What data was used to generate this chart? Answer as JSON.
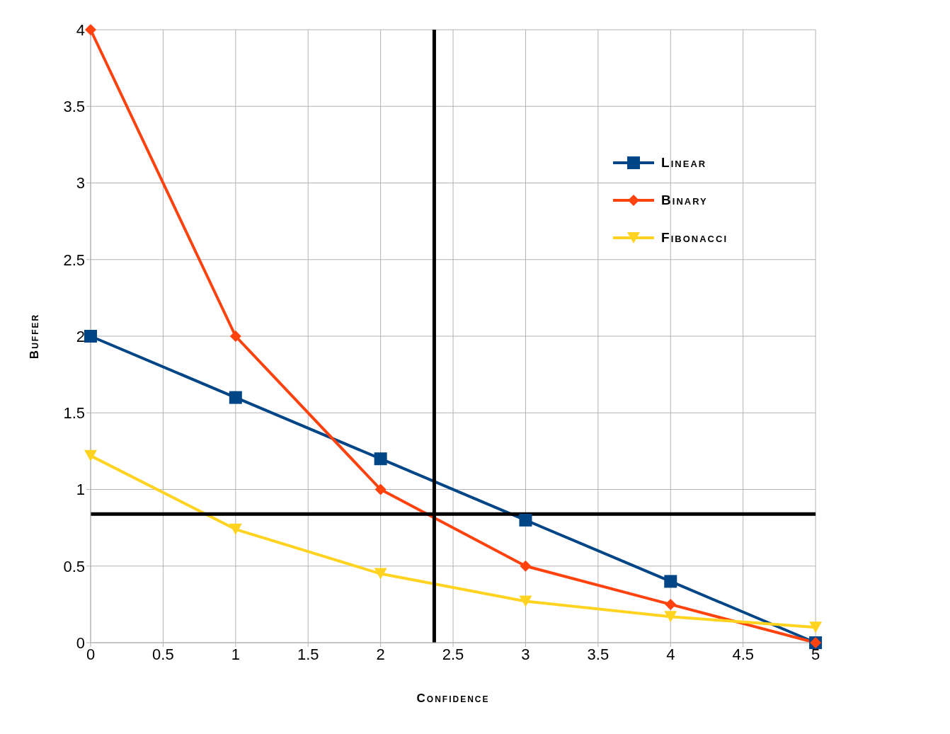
{
  "chart_data": {
    "type": "line",
    "xlabel": "Confidence",
    "ylabel": "Buffer",
    "x": [
      0,
      1,
      2,
      3,
      4,
      5
    ],
    "series": [
      {
        "name": "Linear",
        "color": "#004586",
        "marker": "square",
        "values": [
          2,
          1.6,
          1.2,
          0.8,
          0.4,
          0
        ]
      },
      {
        "name": "Binary",
        "color": "#ff420e",
        "marker": "diamond",
        "values": [
          4,
          2,
          1,
          0.5,
          0.25,
          0
        ]
      },
      {
        "name": "Fibonacci",
        "color": "#ffd320",
        "marker": "triangle",
        "values": [
          1.22,
          0.74,
          0.45,
          0.27,
          0.17,
          0.1
        ]
      }
    ],
    "xlim": [
      0,
      5
    ],
    "xticks": [
      0,
      0.5,
      1,
      1.5,
      2,
      2.5,
      3,
      3.5,
      4,
      4.5,
      5
    ],
    "ylim": [
      0,
      4
    ],
    "yticks": [
      0,
      0.5,
      1,
      1.5,
      2,
      2.5,
      3,
      3.5,
      4
    ],
    "grid": true,
    "legend": "top right",
    "ref_lines": [
      {
        "axis": "x",
        "value": 2.37,
        "color": "#000000"
      },
      {
        "axis": "y",
        "value": 0.84,
        "color": "#000000"
      }
    ]
  }
}
